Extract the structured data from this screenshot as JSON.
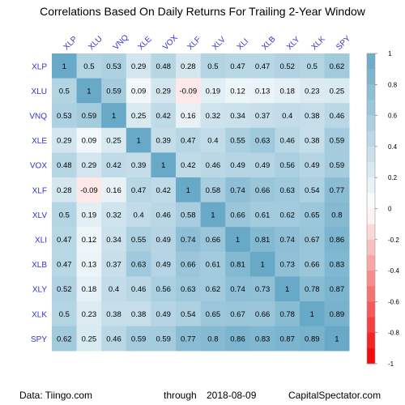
{
  "chart_data": {
    "type": "heatmap",
    "title": "Correlations Based On Daily Returns For Trailing 2-Year Window",
    "labels": [
      "XLP",
      "XLU",
      "VNQ",
      "XLE",
      "VOX",
      "XLF",
      "XLV",
      "XLI",
      "XLB",
      "XLY",
      "XLK",
      "SPY"
    ],
    "matrix": [
      [
        1,
        0.5,
        0.53,
        0.29,
        0.48,
        0.28,
        0.5,
        0.47,
        0.47,
        0.52,
        0.5,
        0.62
      ],
      [
        0.5,
        1,
        0.59,
        0.09,
        0.29,
        -0.09,
        0.19,
        0.12,
        0.13,
        0.18,
        0.23,
        0.25
      ],
      [
        0.53,
        0.59,
        1,
        0.25,
        0.42,
        0.16,
        0.32,
        0.34,
        0.37,
        0.4,
        0.38,
        0.46
      ],
      [
        0.29,
        0.09,
        0.25,
        1,
        0.39,
        0.47,
        0.4,
        0.55,
        0.63,
        0.46,
        0.38,
        0.59
      ],
      [
        0.48,
        0.29,
        0.42,
        0.39,
        1,
        0.42,
        0.46,
        0.49,
        0.49,
        0.56,
        0.49,
        0.59
      ],
      [
        0.28,
        -0.09,
        0.16,
        0.47,
        0.42,
        1,
        0.58,
        0.74,
        0.66,
        0.63,
        0.54,
        0.77
      ],
      [
        0.5,
        0.19,
        0.32,
        0.4,
        0.46,
        0.58,
        1,
        0.66,
        0.61,
        0.62,
        0.65,
        0.8
      ],
      [
        0.47,
        0.12,
        0.34,
        0.55,
        0.49,
        0.74,
        0.66,
        1,
        0.81,
        0.74,
        0.67,
        0.86
      ],
      [
        0.47,
        0.13,
        0.37,
        0.63,
        0.49,
        0.66,
        0.61,
        0.81,
        1,
        0.73,
        0.66,
        0.83
      ],
      [
        0.52,
        0.18,
        0.4,
        0.46,
        0.56,
        0.63,
        0.62,
        0.74,
        0.73,
        1,
        0.78,
        0.87
      ],
      [
        0.5,
        0.23,
        0.38,
        0.38,
        0.49,
        0.54,
        0.65,
        0.67,
        0.66,
        0.78,
        1,
        0.89
      ],
      [
        0.62,
        0.25,
        0.46,
        0.59,
        0.59,
        0.77,
        0.8,
        0.86,
        0.83,
        0.87,
        0.89,
        1
      ]
    ],
    "value_range": [
      -1,
      1
    ],
    "legend_ticks": [
      1,
      0.8,
      0.6,
      0.4,
      0.2,
      0,
      -0.2,
      -0.4,
      -0.6,
      -0.8,
      -1
    ],
    "legend_position": "right",
    "colors": {
      "positive": "#67a9c7",
      "negative": "#f00000",
      "neutral": "#ffffff",
      "label": "#3333cc"
    }
  },
  "footer": {
    "source": "Data: Tiingo.com",
    "through": "through",
    "date": "2018-08-09",
    "site": "CapitalSpectator.com"
  }
}
